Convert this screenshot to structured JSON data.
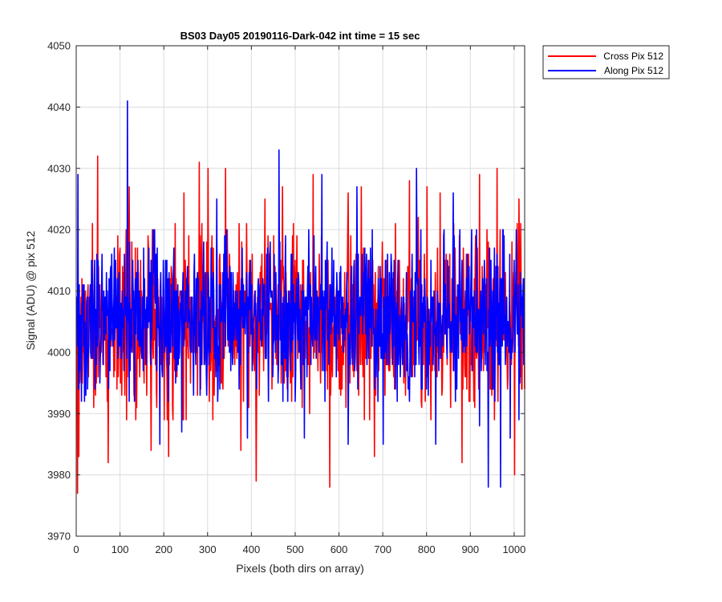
{
  "chart_data": {
    "type": "line",
    "title": "BS03 Day05 20190116-Dark-042 int time = 15 sec",
    "xlabel": "Pixels (both dirs on array)",
    "ylabel": "Signal (ADU) @ pix 512",
    "xlim": [
      0,
      1024
    ],
    "ylim": [
      3970,
      4050
    ],
    "xticks": [
      0,
      100,
      200,
      300,
      400,
      500,
      600,
      700,
      800,
      900,
      1000
    ],
    "yticks": [
      3970,
      3980,
      3990,
      4000,
      4010,
      4020,
      4030,
      4040,
      4050
    ],
    "grid": true,
    "legend_position": "outside-top-right",
    "series": [
      {
        "name": "Cross Pix 512",
        "color": "#ff0000",
        "mean": 4005,
        "std": 7,
        "x": [
          2,
          5,
          48,
          72,
          120,
          170,
          210,
          245,
          280,
          300,
          340,
          375,
          410,
          430,
          470,
          540,
          578,
          620,
          650,
          680,
          760,
          780,
          800,
          830,
          880,
          920,
          960,
          1000,
          1010
        ],
        "y": [
          3977,
          3983,
          4032,
          3982,
          4027,
          3984,
          3983,
          4026,
          4031,
          4030,
          4030,
          3984,
          3979,
          4025,
          4027,
          4029,
          3978,
          4026,
          4027,
          3983,
          4028,
          4022,
          4027,
          4026,
          3982,
          4029,
          4030,
          3980,
          4025
        ]
      },
      {
        "name": "Along Pix 512",
        "color": "#0000ff",
        "mean": 4006,
        "std": 6,
        "x": [
          3,
          116,
          190,
          240,
          320,
          390,
          462,
          520,
          560,
          620,
          640,
          700,
          776,
          820,
          860,
          920,
          940,
          968,
          990,
          1010
        ],
        "y": [
          4029,
          4041,
          3985,
          3987,
          4025,
          3986,
          4033,
          3986,
          4029,
          3985,
          4027,
          3985,
          4030,
          3985,
          4026,
          3988,
          3978,
          3978,
          3986,
          3989
        ]
      }
    ]
  }
}
